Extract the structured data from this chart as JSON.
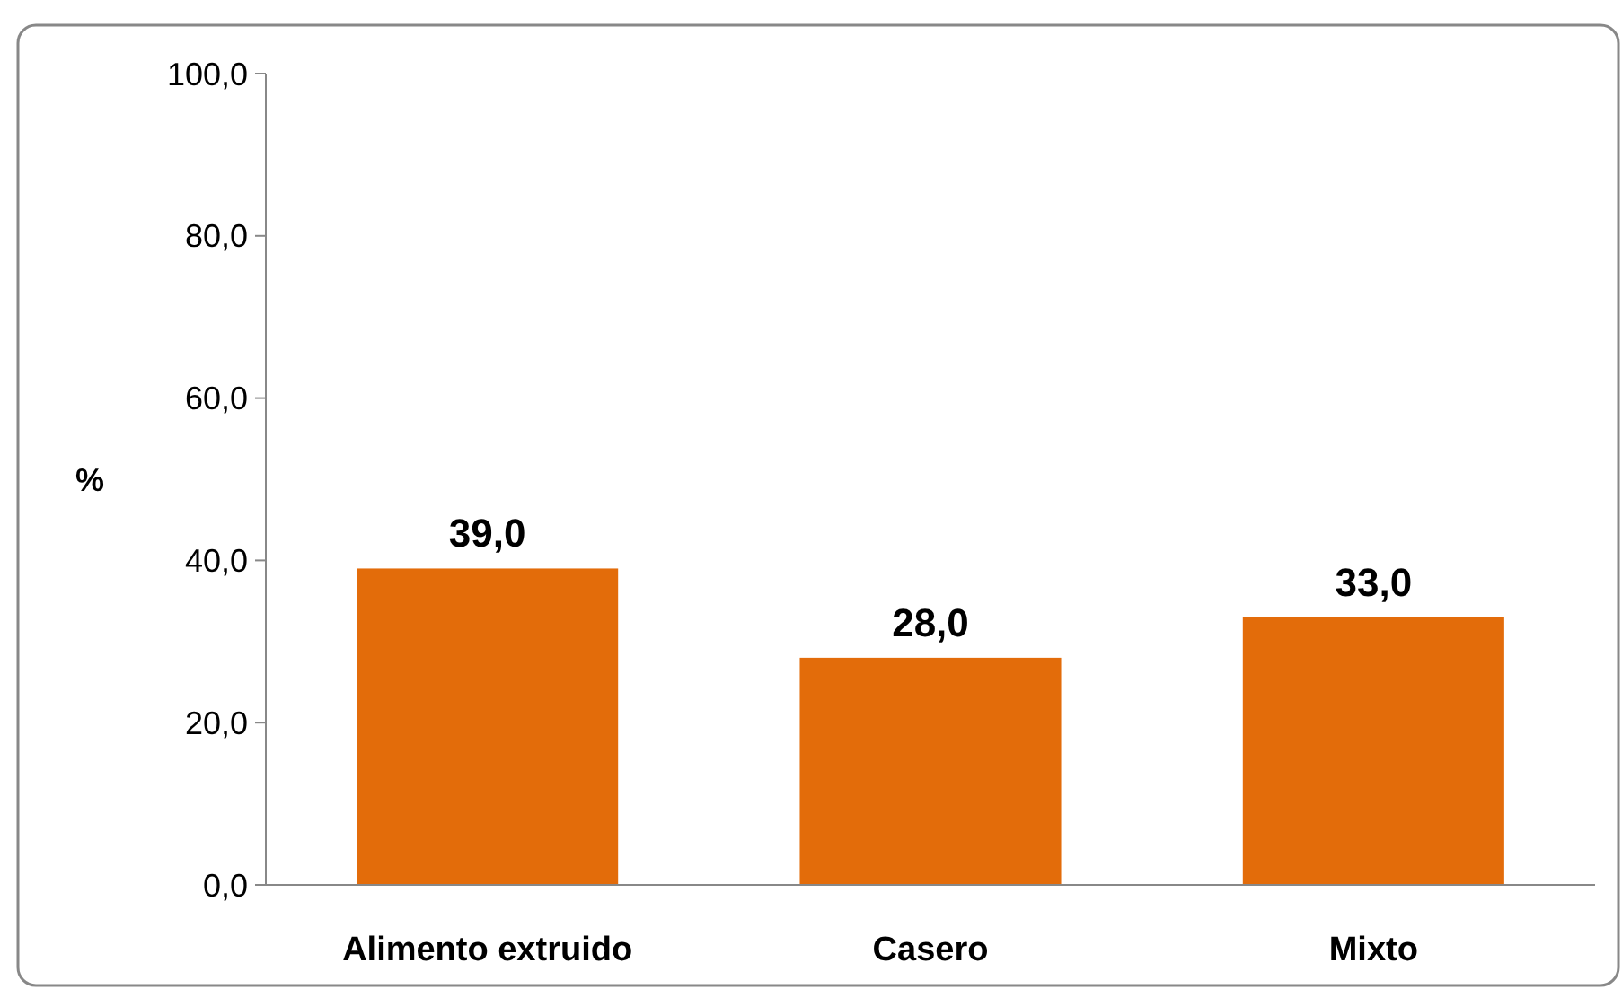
{
  "chart_data": {
    "type": "bar",
    "ylabel": "%",
    "categories": [
      "Alimento extruido",
      "Casero",
      "Mixto"
    ],
    "values": [
      39.0,
      28.0,
      33.0
    ],
    "value_labels": [
      "39,0",
      "28,0",
      "33,0"
    ],
    "color": "#e36c0a",
    "ylim": [
      0,
      100
    ],
    "yticks": [
      {
        "value": 0,
        "label": "0,0"
      },
      {
        "value": 20,
        "label": "20,0"
      },
      {
        "value": 40,
        "label": "40,0"
      },
      {
        "value": 60,
        "label": "60,0"
      },
      {
        "value": 80,
        "label": "80,0"
      },
      {
        "value": 100,
        "label": "100,0"
      }
    ],
    "grid": false
  }
}
